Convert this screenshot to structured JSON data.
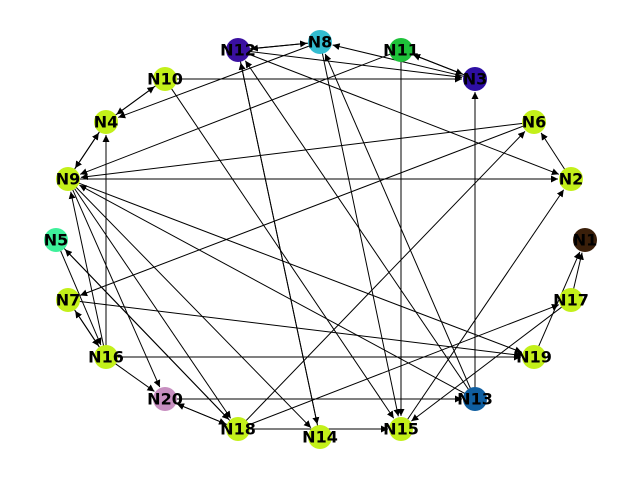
{
  "graph": {
    "type": "directed",
    "nodes": [
      {
        "id": "N1",
        "label": "N1",
        "color": "#3a1f0a"
      },
      {
        "id": "N2",
        "label": "N2",
        "color": "#c3f01a"
      },
      {
        "id": "N3",
        "label": "N3",
        "color": "#2e0fa3"
      },
      {
        "id": "N4",
        "label": "N4",
        "color": "#c3f01a"
      },
      {
        "id": "N5",
        "label": "N5",
        "color": "#3ef09a"
      },
      {
        "id": "N6",
        "label": "N6",
        "color": "#c3f01a"
      },
      {
        "id": "N7",
        "label": "N7",
        "color": "#c3f01a"
      },
      {
        "id": "N8",
        "label": "N8",
        "color": "#33bcd0"
      },
      {
        "id": "N9",
        "label": "N9",
        "color": "#c3f01a"
      },
      {
        "id": "N10",
        "label": "N10",
        "color": "#c3f01a"
      },
      {
        "id": "N11",
        "label": "N11",
        "color": "#1ec23a"
      },
      {
        "id": "N12",
        "label": "N12",
        "color": "#3a10a0"
      },
      {
        "id": "N13",
        "label": "N13",
        "color": "#0f5ea0"
      },
      {
        "id": "N14",
        "label": "N14",
        "color": "#c3f01a"
      },
      {
        "id": "N15",
        "label": "N15",
        "color": "#c3f01a"
      },
      {
        "id": "N16",
        "label": "N16",
        "color": "#c3f01a"
      },
      {
        "id": "N17",
        "label": "N17",
        "color": "#c3f01a"
      },
      {
        "id": "N18",
        "label": "N18",
        "color": "#c3f01a"
      },
      {
        "id": "N19",
        "label": "N19",
        "color": "#c3f01a"
      },
      {
        "id": "N20",
        "label": "N20",
        "color": "#c78fc0"
      }
    ],
    "edges": [
      [
        "N12",
        "N8"
      ],
      [
        "N8",
        "N12"
      ],
      [
        "N12",
        "N3"
      ],
      [
        "N3",
        "N8"
      ],
      [
        "N11",
        "N3"
      ],
      [
        "N3",
        "N11"
      ],
      [
        "N10",
        "N3"
      ],
      [
        "N11",
        "N9"
      ],
      [
        "N12",
        "N2"
      ],
      [
        "N12",
        "N14"
      ],
      [
        "N14",
        "N12"
      ],
      [
        "N13",
        "N12"
      ],
      [
        "N13",
        "N8"
      ],
      [
        "N8",
        "N15"
      ],
      [
        "N11",
        "N15"
      ],
      [
        "N13",
        "N3"
      ],
      [
        "N10",
        "N15"
      ],
      [
        "N2",
        "N6"
      ],
      [
        "N6",
        "N9"
      ],
      [
        "N9",
        "N2"
      ],
      [
        "N6",
        "N7"
      ],
      [
        "N18",
        "N6"
      ],
      [
        "N15",
        "N2"
      ],
      [
        "N17",
        "N1"
      ],
      [
        "N19",
        "N1"
      ],
      [
        "N17",
        "N15"
      ],
      [
        "N18",
        "N17"
      ],
      [
        "N4",
        "N10"
      ],
      [
        "N10",
        "N4"
      ],
      [
        "N8",
        "N4"
      ],
      [
        "N4",
        "N9"
      ],
      [
        "N9",
        "N4"
      ],
      [
        "N9",
        "N19"
      ],
      [
        "N9",
        "N18"
      ],
      [
        "N9",
        "N14"
      ],
      [
        "N9",
        "N20"
      ],
      [
        "N13",
        "N9"
      ],
      [
        "N16",
        "N4"
      ],
      [
        "N16",
        "N9"
      ],
      [
        "N7",
        "N16"
      ],
      [
        "N16",
        "N7"
      ],
      [
        "N7",
        "N19"
      ],
      [
        "N16",
        "N19"
      ],
      [
        "N16",
        "N20"
      ],
      [
        "N5",
        "N16"
      ],
      [
        "N5",
        "N18"
      ],
      [
        "N18",
        "N5"
      ],
      [
        "N20",
        "N18"
      ],
      [
        "N18",
        "N20"
      ],
      [
        "N20",
        "N13"
      ],
      [
        "N18",
        "N15"
      ]
    ]
  }
}
